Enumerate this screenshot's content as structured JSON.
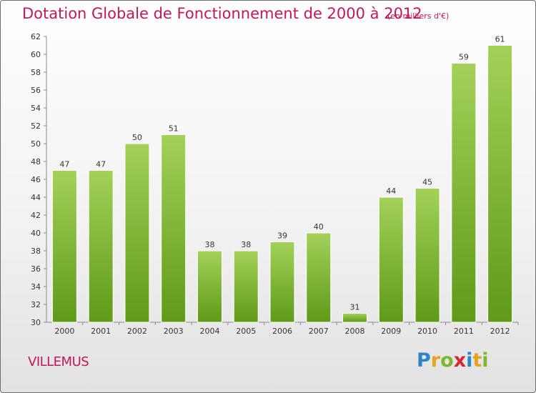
{
  "header": {
    "title": "Dotation Globale de Fonctionnement de 2000 à 2012",
    "subtitle": "(en milliers d'€)"
  },
  "footer": {
    "commune": "VILLEMUS",
    "logo_text": "Proxiti"
  },
  "colors": {
    "accent": "#c2185b",
    "bar_top": "#a3d15a",
    "bar_bottom": "#5f9a18"
  },
  "chart_data": {
    "type": "bar",
    "title": "Dotation Globale de Fonctionnement de 2000 à 2012",
    "subtitle": "(en milliers d'€)",
    "categories": [
      "2000",
      "2001",
      "2002",
      "2003",
      "2004",
      "2005",
      "2006",
      "2007",
      "2008",
      "2009",
      "2010",
      "2011",
      "2012"
    ],
    "values": [
      47,
      47,
      50,
      51,
      38,
      38,
      39,
      40,
      31,
      44,
      45,
      59,
      61
    ],
    "ylim": [
      30,
      62
    ],
    "yticks": [
      30,
      32,
      34,
      36,
      38,
      40,
      42,
      44,
      46,
      48,
      50,
      52,
      54,
      56,
      58,
      60,
      62
    ],
    "grid": false,
    "data_labels": true
  }
}
